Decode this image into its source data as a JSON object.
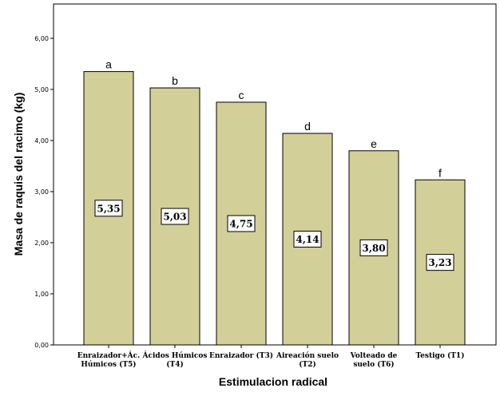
{
  "chart_data": {
    "type": "bar",
    "categories": [
      [
        "Enraizador+Ác.",
        "Húmicos (T5)"
      ],
      [
        "Ácidos Húmicos",
        "(T4)"
      ],
      [
        "Enraizador (T3)"
      ],
      [
        "Aireación suelo",
        "(T2)"
      ],
      [
        "Volteado de",
        "suelo (T6)"
      ],
      [
        "Testigo (T1)"
      ]
    ],
    "values": [
      5.35,
      5.03,
      4.75,
      4.14,
      3.8,
      3.23
    ],
    "value_labels": [
      "5,35",
      "5,03",
      "4,75",
      "4,14",
      "3,80",
      "3,23"
    ],
    "letters": [
      "a",
      "b",
      "c",
      "d",
      "e",
      "f"
    ],
    "xlabel": "Estimulacion radical",
    "ylabel": "Masa de raquis del racimo (kg)",
    "ylim": [
      0,
      6.5
    ],
    "yticks": [
      0,
      1,
      2,
      3,
      4,
      5,
      6
    ],
    "ytick_labels": [
      "0,00",
      "1,00",
      "2,00",
      "3,00",
      "4,00",
      "5,00",
      "6,00"
    ],
    "grid": false,
    "bar_color": "#d3cf98",
    "bar_edge_color": "#000000"
  }
}
